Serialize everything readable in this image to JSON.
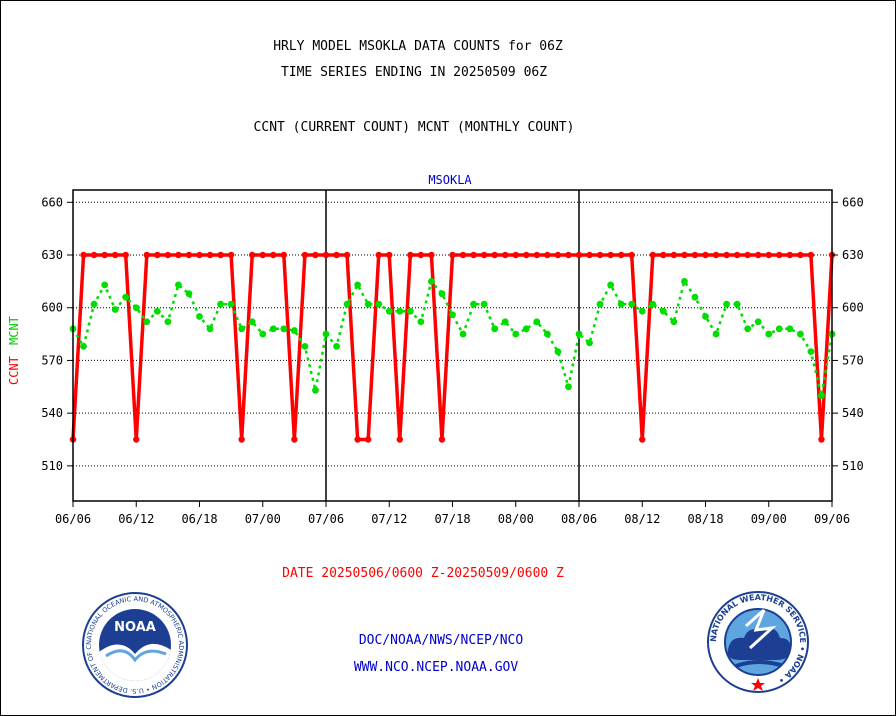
{
  "header": {
    "title_line1": "HRLY MODEL MSOKLA DATA COUNTS for 06Z",
    "title_line2": "TIME SERIES ENDING IN 20250509 06Z",
    "subtitle": "CCNT (CURRENT COUNT) MCNT (MONTHLY COUNT)"
  },
  "footer": {
    "date_range": "DATE 20250506/0600 Z-20250509/0600 Z",
    "org_line": "DOC/NOAA/NWS/NCEP/NCO",
    "url_line": "WWW.NCO.NCEP.NOAA.GOV"
  },
  "logos": {
    "noaa_text": "NOAA",
    "noaa_ring": "NATIONAL OCEANIC AND ATMOSPHERIC ADMINISTRATION • U.S. DEPARTMENT OF COMMERCE •",
    "nws_ring": "NATIONAL WEATHER SERVICE • NOAA •"
  },
  "colors": {
    "ccnt": "#ff0000",
    "mcnt": "#00dd00",
    "title": "#000000",
    "footer_red": "#ff0000",
    "footer_blue": "#0000cc"
  },
  "chart_data": {
    "type": "line",
    "title": "MSOKLA",
    "ylabel_ccnt": "CCNT",
    "ylabel_mcnt": "MCNT",
    "ylim": [
      490,
      667
    ],
    "yticks": [
      510,
      540,
      570,
      600,
      630,
      660
    ],
    "xlim": [
      0,
      72
    ],
    "x_tick_labels": [
      "06/06",
      "06/12",
      "06/18",
      "07/00",
      "07/06",
      "07/12",
      "07/18",
      "08/00",
      "08/06",
      "08/12",
      "08/18",
      "09/00",
      "09/06"
    ],
    "day_dividers_at_tick_index": [
      4,
      8
    ],
    "grid": true,
    "series": [
      {
        "key": "ccnt",
        "values": [
          525,
          630,
          630,
          630,
          630,
          630,
          525,
          630,
          630,
          630,
          630,
          630,
          630,
          630,
          630,
          630,
          525,
          630,
          630,
          630,
          630,
          525,
          630,
          630,
          630,
          630,
          630,
          525,
          525,
          630,
          630,
          525,
          630,
          630,
          630,
          525,
          630,
          630,
          630,
          630,
          630,
          630,
          630,
          630,
          630,
          630,
          630,
          630,
          630,
          630,
          630,
          630,
          630,
          630,
          525,
          630,
          630,
          630,
          630,
          630,
          630,
          630,
          630,
          630,
          630,
          630,
          630,
          630,
          630,
          630,
          630,
          525,
          630
        ]
      },
      {
        "key": "mcnt",
        "values": [
          588,
          578,
          602,
          613,
          599,
          606,
          600,
          592,
          598,
          592,
          613,
          608,
          595,
          588,
          602,
          602,
          588,
          592,
          585,
          588,
          588,
          587,
          578,
          553,
          585,
          578,
          602,
          613,
          602,
          602,
          598,
          598,
          598,
          592,
          615,
          608,
          596,
          585,
          602,
          602,
          588,
          592,
          585,
          588,
          592,
          585,
          575,
          555,
          585,
          580,
          602,
          613,
          602,
          602,
          598,
          602,
          598,
          592,
          615,
          606,
          595,
          585,
          602,
          602,
          588,
          592,
          585,
          588,
          588,
          585,
          575,
          550,
          585
        ]
      }
    ]
  }
}
